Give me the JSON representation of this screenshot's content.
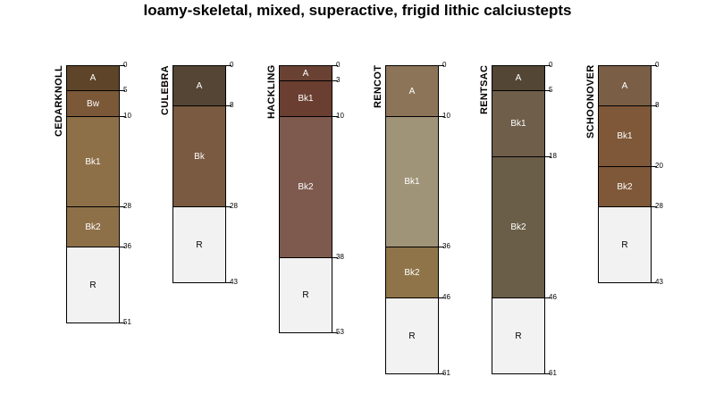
{
  "title": "loamy-skeletal, mixed, superactive, frigid lithic calciustepts",
  "profiles": [
    {
      "name": "CEDARKNOLL",
      "horizons": [
        {
          "name": "A",
          "top": 0,
          "bottom": 5,
          "color": "#5e4428",
          "text_color": "#ffffff"
        },
        {
          "name": "Bw",
          "top": 5,
          "bottom": 10,
          "color": "#7a5838",
          "text_color": "#ffffff"
        },
        {
          "name": "Bk1",
          "top": 10,
          "bottom": 28,
          "color": "#8e7048",
          "text_color": "#ffffff"
        },
        {
          "name": "Bk2",
          "top": 28,
          "bottom": 36,
          "color": "#8e7048",
          "text_color": "#ffffff"
        },
        {
          "name": "R",
          "top": 36,
          "bottom": 51,
          "color": "#f2f2f2",
          "text_color": "#000000"
        }
      ]
    },
    {
      "name": "CULEBRA",
      "horizons": [
        {
          "name": "A",
          "top": 0,
          "bottom": 8,
          "color": "#544534",
          "text_color": "#ffffff"
        },
        {
          "name": "Bk",
          "top": 8,
          "bottom": 28,
          "color": "#7a5a40",
          "text_color": "#ffffff"
        },
        {
          "name": "R",
          "top": 28,
          "bottom": 43,
          "color": "#f2f2f2",
          "text_color": "#000000"
        }
      ]
    },
    {
      "name": "HACKLING",
      "horizons": [
        {
          "name": "A",
          "top": 0,
          "bottom": 3,
          "color": "#6a4234",
          "text_color": "#ffffff"
        },
        {
          "name": "Bk1",
          "top": 3,
          "bottom": 10,
          "color": "#6a3e30",
          "text_color": "#ffffff"
        },
        {
          "name": "Bk2",
          "top": 10,
          "bottom": 38,
          "color": "#7e5a4e",
          "text_color": "#ffffff"
        },
        {
          "name": "R",
          "top": 38,
          "bottom": 53,
          "color": "#f2f2f2",
          "text_color": "#000000"
        }
      ]
    },
    {
      "name": "RENCOT",
      "horizons": [
        {
          "name": "A",
          "top": 0,
          "bottom": 10,
          "color": "#8c7458",
          "text_color": "#ffffff"
        },
        {
          "name": "Bk1",
          "top": 10,
          "bottom": 36,
          "color": "#a09478",
          "text_color": "#ffffff"
        },
        {
          "name": "Bk2",
          "top": 36,
          "bottom": 46,
          "color": "#8e7448",
          "text_color": "#ffffff"
        },
        {
          "name": "R",
          "top": 46,
          "bottom": 61,
          "color": "#f2f2f2",
          "text_color": "#000000"
        }
      ]
    },
    {
      "name": "RENTSAC",
      "horizons": [
        {
          "name": "A",
          "top": 0,
          "bottom": 5,
          "color": "#544634",
          "text_color": "#ffffff"
        },
        {
          "name": "Bk1",
          "top": 5,
          "bottom": 18,
          "color": "#6e5e4a",
          "text_color": "#ffffff"
        },
        {
          "name": "Bk2",
          "top": 18,
          "bottom": 46,
          "color": "#6a5e48",
          "text_color": "#ffffff"
        },
        {
          "name": "R",
          "top": 46,
          "bottom": 61,
          "color": "#f2f2f2",
          "text_color": "#000000"
        }
      ]
    },
    {
      "name": "SCHOONOVER",
      "horizons": [
        {
          "name": "A",
          "top": 0,
          "bottom": 8,
          "color": "#7a5e46",
          "text_color": "#ffffff"
        },
        {
          "name": "Bk1",
          "top": 8,
          "bottom": 20,
          "color": "#7e5838",
          "text_color": "#ffffff"
        },
        {
          "name": "Bk2",
          "top": 20,
          "bottom": 28,
          "color": "#7e5838",
          "text_color": "#ffffff"
        },
        {
          "name": "R",
          "top": 28,
          "bottom": 43,
          "color": "#f2f2f2",
          "text_color": "#000000"
        }
      ]
    }
  ]
}
